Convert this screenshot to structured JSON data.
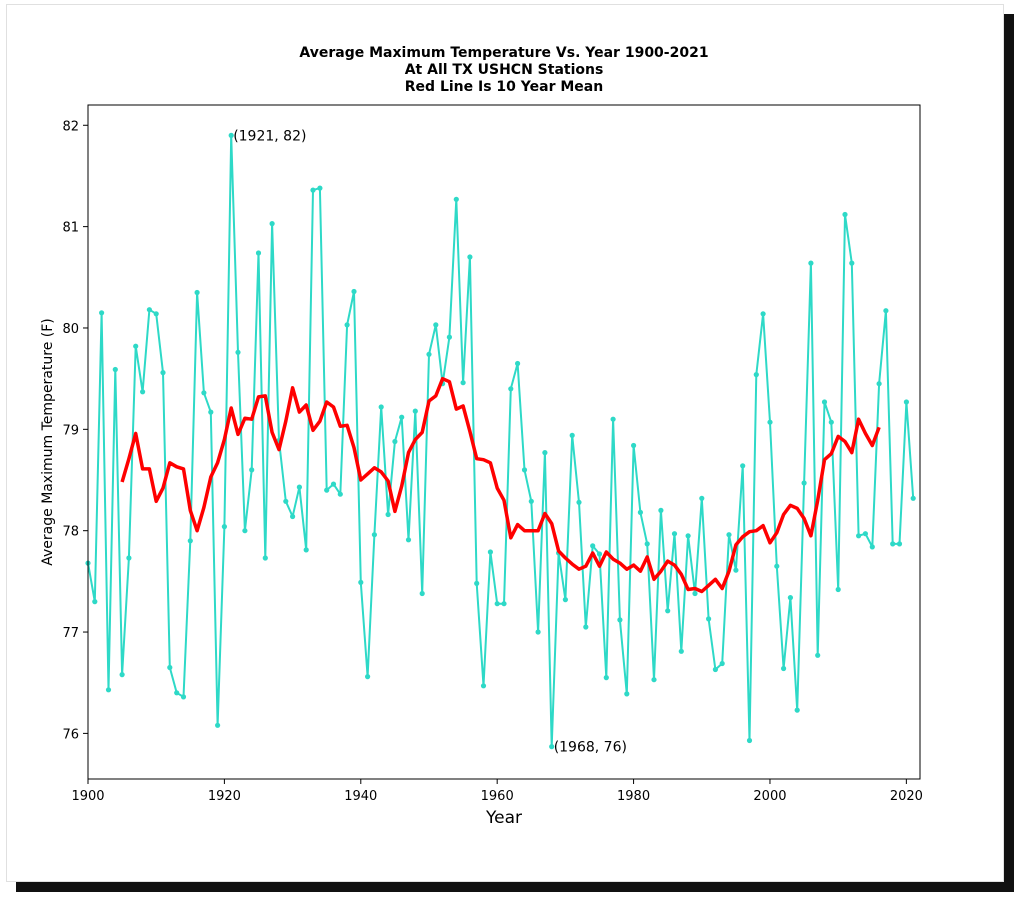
{
  "chart_data": {
    "type": "line",
    "title_lines": [
      "Average Maximum Temperature Vs. Year 1900-2021",
      "At All TX USHCN Stations",
      "Red Line Is 10 Year Mean"
    ],
    "xlabel": "Year",
    "ylabel": "Average Maximum Temperature (F)",
    "xlim": [
      1900,
      2022
    ],
    "ylim": [
      75.55,
      82.2
    ],
    "xticks": [
      1900,
      1920,
      1940,
      1960,
      1980,
      2000,
      2020
    ],
    "yticks": [
      76,
      77,
      78,
      79,
      80,
      81,
      82
    ],
    "grid": false,
    "series": [
      {
        "color": "#2ed9c7",
        "style": "line-with-dots",
        "x": [
          1900,
          1901,
          1902,
          1903,
          1904,
          1905,
          1906,
          1907,
          1908,
          1909,
          1910,
          1911,
          1912,
          1913,
          1914,
          1915,
          1916,
          1917,
          1918,
          1919,
          1920,
          1921,
          1922,
          1923,
          1924,
          1925,
          1926,
          1927,
          1928,
          1929,
          1930,
          1931,
          1932,
          1933,
          1934,
          1935,
          1936,
          1937,
          1938,
          1939,
          1940,
          1941,
          1942,
          1943,
          1944,
          1945,
          1946,
          1947,
          1948,
          1949,
          1950,
          1951,
          1952,
          1953,
          1954,
          1955,
          1956,
          1957,
          1958,
          1959,
          1960,
          1961,
          1962,
          1963,
          1964,
          1965,
          1966,
          1967,
          1968,
          1969,
          1970,
          1971,
          1972,
          1973,
          1974,
          1975,
          1976,
          1977,
          1978,
          1979,
          1980,
          1981,
          1982,
          1983,
          1984,
          1985,
          1986,
          1987,
          1988,
          1989,
          1990,
          1991,
          1992,
          1993,
          1994,
          1995,
          1996,
          1997,
          1998,
          1999,
          2000,
          2001,
          2002,
          2003,
          2004,
          2005,
          2006,
          2007,
          2008,
          2009,
          2010,
          2011,
          2012,
          2013,
          2014,
          2015,
          2016,
          2017,
          2018,
          2019,
          2020,
          2021
        ],
        "y": [
          77.68,
          77.3,
          80.15,
          76.43,
          79.59,
          76.58,
          77.73,
          79.82,
          79.37,
          80.18,
          80.14,
          79.56,
          76.65,
          76.4,
          76.36,
          77.9,
          80.35,
          79.36,
          79.17,
          76.08,
          78.04,
          81.9,
          79.76,
          78.0,
          78.6,
          80.74,
          77.73,
          81.03,
          78.89,
          78.29,
          78.14,
          78.43,
          77.81,
          81.36,
          81.38,
          78.4,
          78.46,
          78.36,
          80.03,
          80.36,
          77.49,
          76.56,
          77.96,
          79.22,
          78.16,
          78.88,
          79.12,
          77.91,
          79.18,
          77.38,
          79.74,
          80.03,
          79.45,
          79.91,
          81.27,
          79.46,
          80.7,
          77.48,
          76.47,
          77.79,
          77.28,
          77.28,
          79.4,
          79.65,
          78.6,
          78.29,
          77.0,
          78.77,
          75.87,
          77.78,
          77.32,
          78.94,
          78.28,
          77.05,
          77.85,
          77.77,
          76.55,
          79.1,
          77.12,
          76.39,
          78.84,
          78.18,
          77.87,
          76.53,
          78.2,
          77.21,
          77.97,
          76.81,
          77.95,
          77.38,
          78.32,
          77.13,
          76.63,
          76.69,
          77.96,
          77.61,
          78.64,
          75.93,
          79.54,
          80.14,
          79.07,
          77.65,
          76.64,
          77.34,
          76.23,
          78.47,
          80.64,
          76.77,
          79.27,
          79.07,
          77.42,
          81.12,
          80.64,
          77.95,
          77.97,
          77.84,
          79.45,
          80.17,
          77.87,
          77.87,
          79.27,
          78.32
        ]
      },
      {
        "color": "#ff0000",
        "style": "thick-line",
        "x": [
          1905,
          1906,
          1907,
          1908,
          1909,
          1910,
          1911,
          1912,
          1913,
          1914,
          1915,
          1916,
          1917,
          1918,
          1919,
          1920,
          1921,
          1922,
          1923,
          1924,
          1925,
          1926,
          1927,
          1928,
          1929,
          1930,
          1931,
          1932,
          1933,
          1934,
          1935,
          1936,
          1937,
          1938,
          1939,
          1940,
          1941,
          1942,
          1943,
          1944,
          1945,
          1946,
          1947,
          1948,
          1949,
          1950,
          1951,
          1952,
          1953,
          1954,
          1955,
          1956,
          1957,
          1958,
          1959,
          1960,
          1961,
          1962,
          1963,
          1964,
          1965,
          1966,
          1967,
          1968,
          1969,
          1970,
          1971,
          1972,
          1973,
          1974,
          1975,
          1976,
          1977,
          1978,
          1979,
          1980,
          1981,
          1982,
          1983,
          1984,
          1985,
          1986,
          1987,
          1988,
          1989,
          1990,
          1991,
          1992,
          1993,
          1994,
          1995,
          1996,
          1997,
          1998,
          1999,
          2000,
          2001,
          2002,
          2003,
          2004,
          2005,
          2006,
          2007,
          2008,
          2009,
          2010,
          2011,
          2012,
          2013,
          2014,
          2015,
          2016
        ],
        "y": [
          78.48,
          78.71,
          78.96,
          78.61,
          78.61,
          78.29,
          78.42,
          78.67,
          78.63,
          78.61,
          78.2,
          78.0,
          78.23,
          78.53,
          78.67,
          78.9,
          79.21,
          78.95,
          79.11,
          79.1,
          79.32,
          79.33,
          78.97,
          78.8,
          79.08,
          79.41,
          79.17,
          79.24,
          78.99,
          79.08,
          79.27,
          79.22,
          79.03,
          79.04,
          78.82,
          78.5,
          78.56,
          78.62,
          78.58,
          78.49,
          78.19,
          78.44,
          78.77,
          78.9,
          78.97,
          79.28,
          79.33,
          79.5,
          79.47,
          79.2,
          79.23,
          78.98,
          78.71,
          78.7,
          78.67,
          78.42,
          78.3,
          77.93,
          78.06,
          78.0,
          78.0,
          78.0,
          78.17,
          78.07,
          77.8,
          77.73,
          77.67,
          77.62,
          77.65,
          77.78,
          77.65,
          77.79,
          77.72,
          77.68,
          77.62,
          77.66,
          77.6,
          77.74,
          77.52,
          77.6,
          77.7,
          77.66,
          77.57,
          77.42,
          77.43,
          77.4,
          77.46,
          77.52,
          77.43,
          77.6,
          77.86,
          77.94,
          77.99,
          78.0,
          78.05,
          77.88,
          77.98,
          78.16,
          78.25,
          78.22,
          78.12,
          77.95,
          78.3,
          78.7,
          78.76,
          78.93,
          78.88,
          78.77,
          79.1,
          78.96,
          78.84,
          79.02
        ]
      }
    ],
    "annotations": [
      {
        "text": "(1921, 82)",
        "x": 1921,
        "y": 81.9
      },
      {
        "text": "(1968, 76)",
        "x": 1968,
        "y": 75.87
      }
    ]
  }
}
